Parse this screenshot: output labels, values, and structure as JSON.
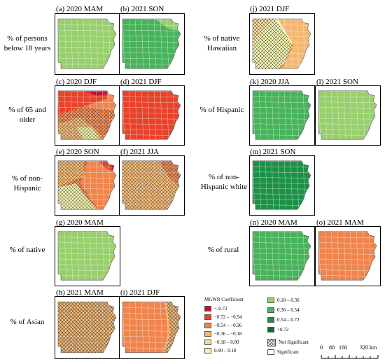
{
  "row_labels": [
    "% of persons below 18 years",
    "% of 65 and older",
    "% of non-Hispanic",
    "% of native",
    "% of Asian",
    "% of native Hawaiian",
    "% of Hispanic",
    "% of non-Hispanic white",
    "% of rural"
  ],
  "panel_titles": {
    "a": "(a)  2020 MAM",
    "b": "(b) 2021 SON",
    "c": "(c)  2020 DJF",
    "d": "(d)  2021 DJF",
    "e": "(e)  2020 SON",
    "f": "(f)   2021 JJA",
    "g": "(g) 2020 MAM",
    "h": "(h)  2021 MAM",
    "i": "(i)   2021 DJF",
    "j": "(j)    2021 DJF",
    "k": "(k)   2020 JJA",
    "l": "(l)    2021 SON",
    "m": "(m)    2021 SON",
    "n": "(n)    2020 MAM",
    "o": "(o)    2021 MAM"
  },
  "legend": {
    "title": "MGWR Coefficient",
    "negative": [
      {
        "label": "<-0.72",
        "color": "#c8102e"
      },
      {
        "label": "−0.72 – −0.54",
        "color": "#e8422b"
      },
      {
        "label": "−0.54 – −0.36",
        "color": "#f0844c"
      },
      {
        "label": "−0.36 – −0.18",
        "color": "#f5b770"
      },
      {
        "label": "−0.18 – 0.00",
        "color": "#f8d98f"
      },
      {
        "label": "0.00 – 0.18",
        "color": "#f2f2aa"
      }
    ],
    "positive": [
      {
        "label": "0.18 – 0.36",
        "color": "#98cf6d"
      },
      {
        "label": "0.36 – 0.54",
        "color": "#47b35a"
      },
      {
        "label": "0.54 – 0.72",
        "color": "#1c9145"
      },
      {
        "label": ">0.72",
        "color": "#0b6b31"
      }
    ],
    "not_significant": "Not Significant",
    "significant": "Significant"
  },
  "scale": {
    "ticks": [
      "0",
      "80",
      "160",
      "320 km"
    ]
  },
  "colors": {
    "c_neg72": "#c8102e",
    "c_neg54": "#e8422b",
    "c_neg36": "#f0844c",
    "c_neg18": "#f5b770",
    "c_neg00": "#f8d98f",
    "c_pos00": "#f2f2aa",
    "c_pos18": "#98cf6d",
    "c_pos36": "#47b35a",
    "c_pos54": "#1c9145",
    "c_pos72": "#0b6b31"
  }
}
